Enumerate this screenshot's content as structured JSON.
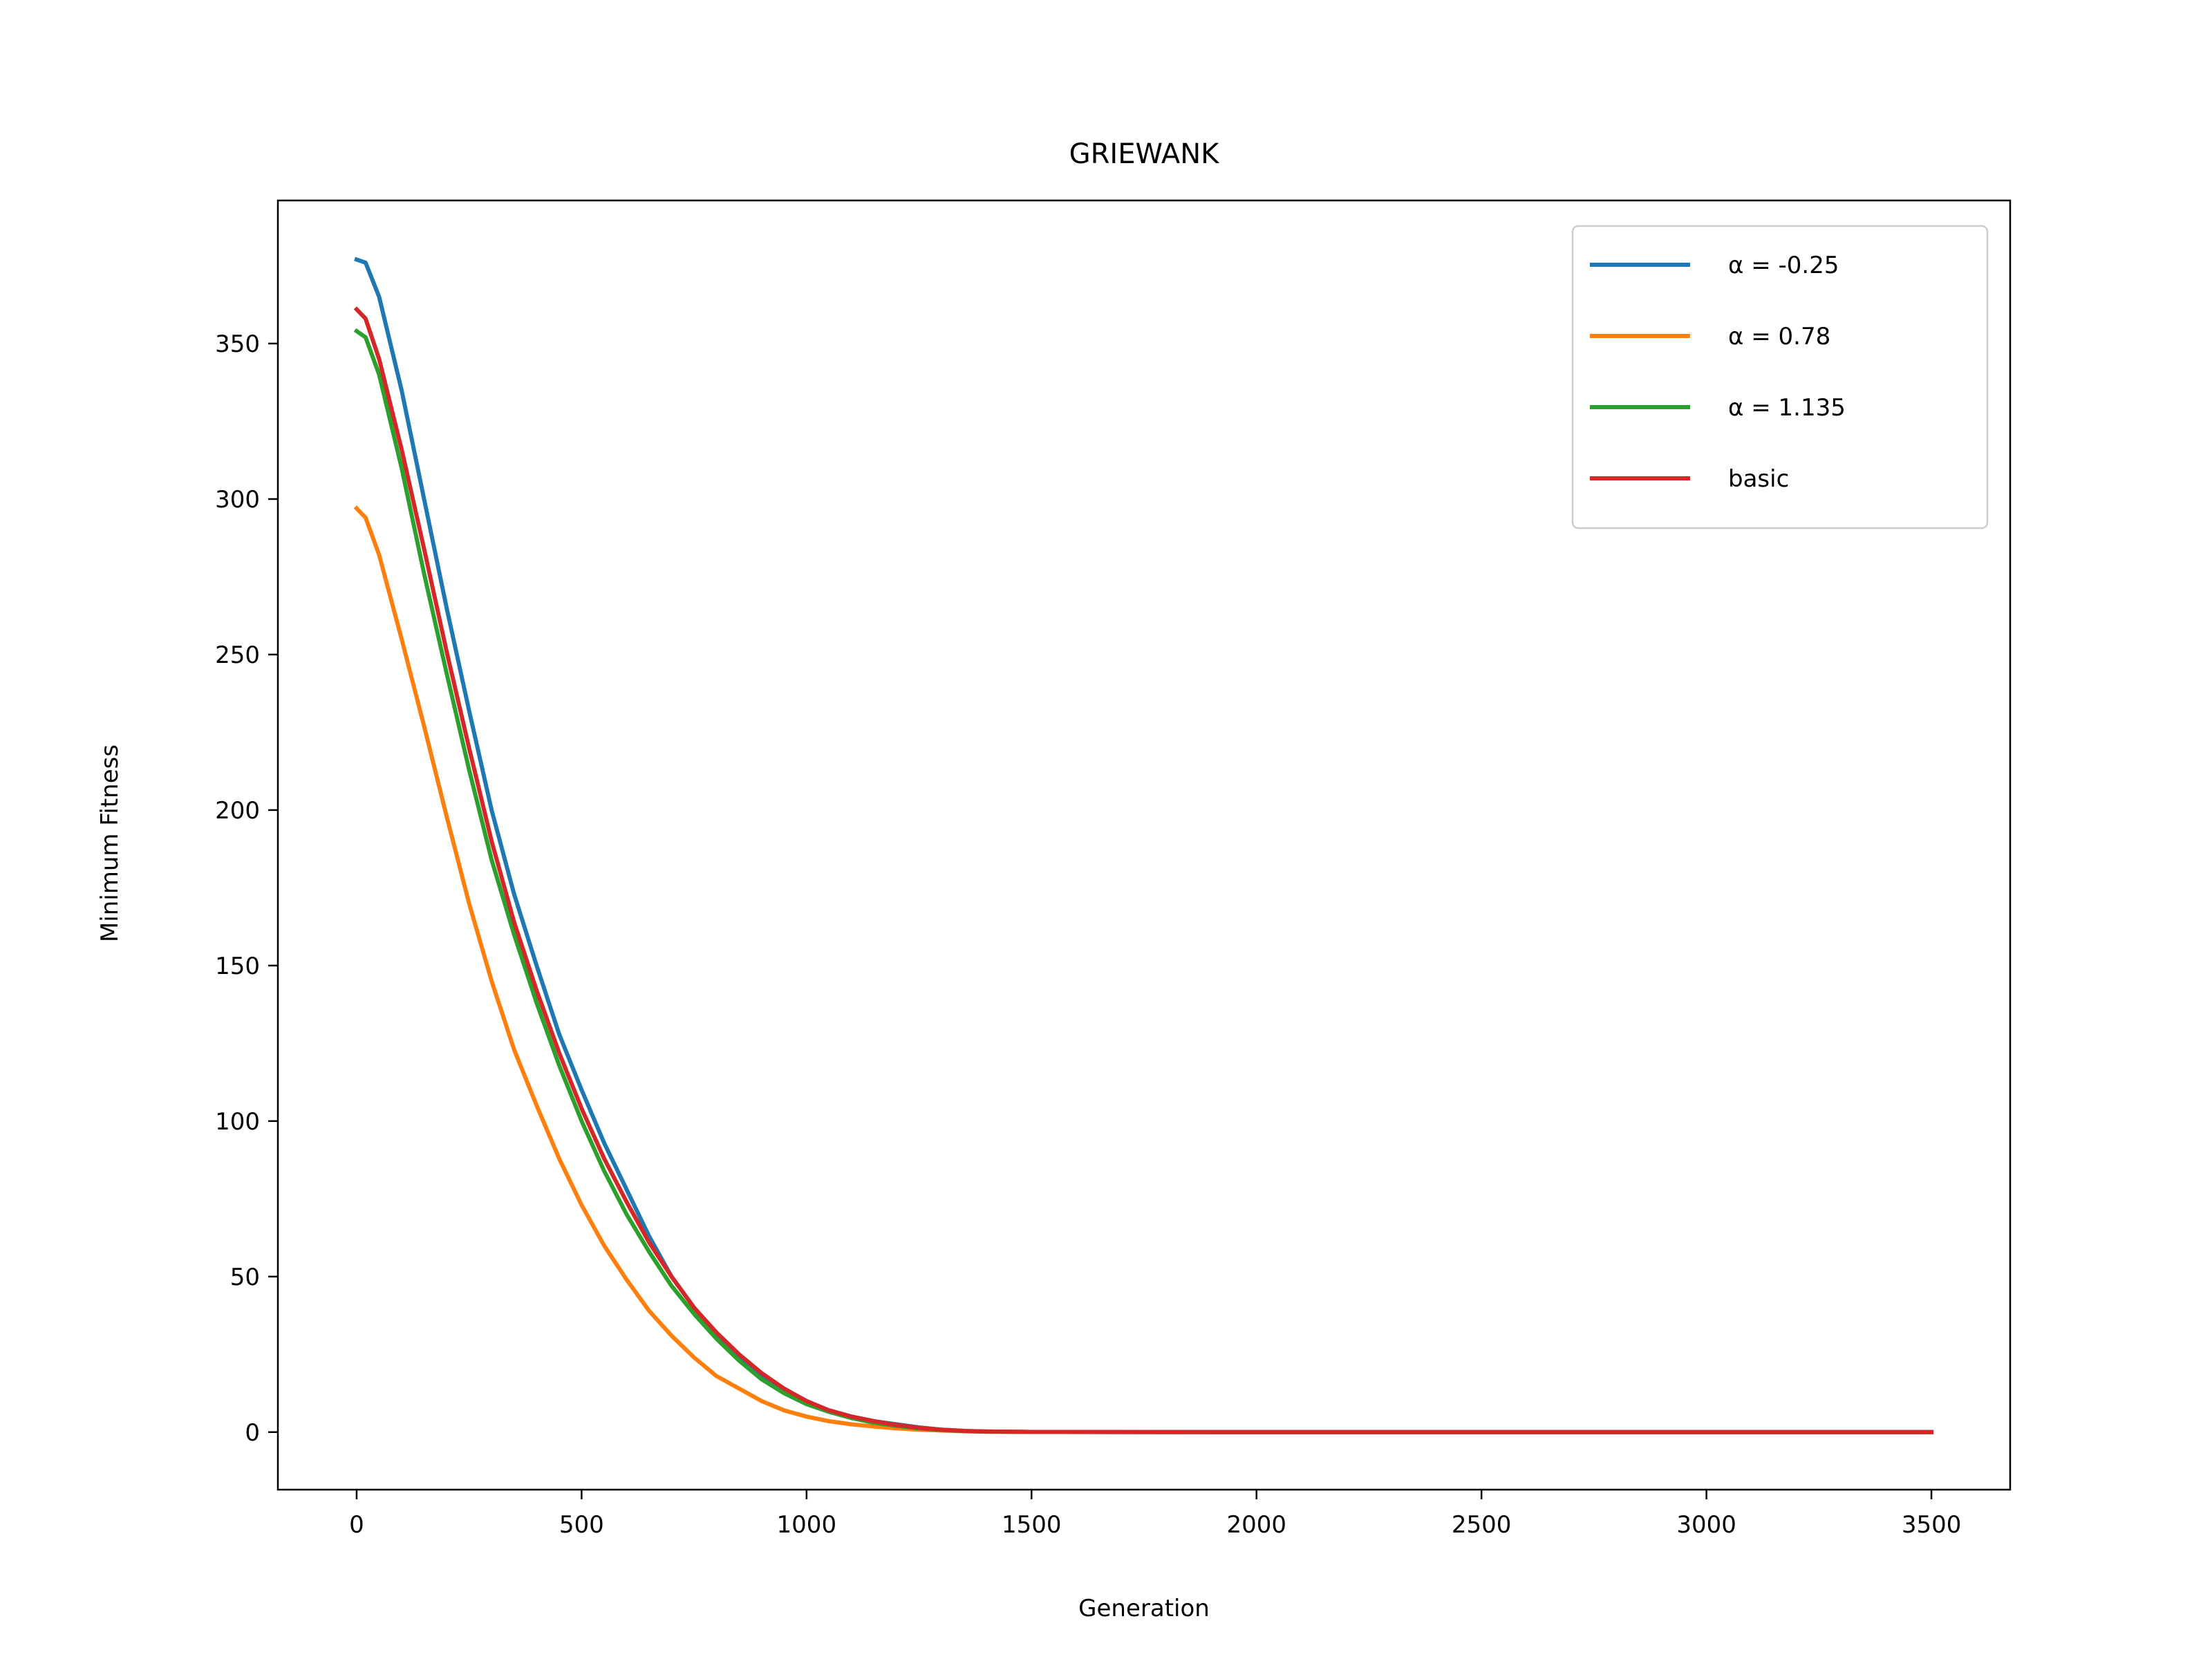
{
  "chart_data": {
    "type": "line",
    "title": "GRIEWANK",
    "xlabel": "Generation",
    "ylabel": "Minimum Fitness",
    "xlim": [
      -175,
      3675
    ],
    "ylim": [
      -18.5,
      396
    ],
    "xticks": [
      0,
      500,
      1000,
      1500,
      2000,
      2500,
      3000,
      3500
    ],
    "yticks": [
      0,
      50,
      100,
      150,
      200,
      250,
      300,
      350
    ],
    "grid": false,
    "legend_position": "top-right",
    "series": [
      {
        "name": "α = -0.25",
        "color": "#1f77b4",
        "x": [
          0,
          20,
          50,
          100,
          150,
          200,
          250,
          300,
          350,
          400,
          450,
          500,
          550,
          600,
          650,
          700,
          750,
          800,
          850,
          900,
          950,
          1000,
          1050,
          1100,
          1150,
          1200,
          1250,
          1300,
          1350,
          1400,
          1500,
          2000,
          2500,
          3000,
          3500
        ],
        "y": [
          377,
          376,
          365,
          335,
          300,
          265,
          232,
          200,
          173,
          150,
          128,
          110,
          93,
          78,
          63,
          50,
          40,
          31,
          24,
          18,
          13,
          9.5,
          7,
          5,
          3.5,
          2.5,
          1.5,
          0.8,
          0.4,
          0.2,
          0.05,
          0,
          0,
          0,
          0
        ]
      },
      {
        "name": "α = 0.78",
        "color": "#ff7f0e",
        "x": [
          0,
          20,
          50,
          100,
          150,
          200,
          250,
          300,
          350,
          400,
          450,
          500,
          550,
          600,
          650,
          700,
          750,
          800,
          850,
          900,
          950,
          1000,
          1050,
          1100,
          1150,
          1200,
          1250,
          1300,
          1350,
          1400,
          1500,
          2000,
          2500,
          3000,
          3500
        ],
        "y": [
          297,
          294,
          282,
          255,
          227,
          198,
          170,
          145,
          123,
          105,
          88,
          73,
          60,
          49,
          39,
          31,
          24,
          18,
          14,
          10,
          7,
          5,
          3.5,
          2.5,
          1.8,
          1.2,
          0.8,
          0.5,
          0.3,
          0.15,
          0.05,
          0,
          0,
          0,
          0
        ]
      },
      {
        "name": "α = 1.135",
        "color": "#2ca02c",
        "x": [
          0,
          20,
          50,
          100,
          150,
          200,
          250,
          300,
          350,
          400,
          450,
          500,
          550,
          600,
          650,
          700,
          750,
          800,
          850,
          900,
          950,
          1000,
          1050,
          1100,
          1150,
          1200,
          1250,
          1300,
          1350,
          1400,
          1500,
          2000,
          2500,
          3000,
          3500
        ],
        "y": [
          354,
          352,
          340,
          310,
          276,
          244,
          213,
          184,
          160,
          138,
          118,
          100,
          84,
          70,
          58,
          47,
          38,
          30,
          23,
          17,
          12.5,
          9,
          6.5,
          4.5,
          3,
          2,
          1.2,
          0.7,
          0.3,
          0.15,
          0.05,
          0,
          0,
          0,
          0
        ]
      },
      {
        "name": "basic",
        "color": "#d62728",
        "x": [
          0,
          20,
          50,
          100,
          150,
          200,
          250,
          300,
          350,
          400,
          450,
          500,
          550,
          600,
          650,
          700,
          750,
          800,
          850,
          900,
          950,
          1000,
          1050,
          1100,
          1150,
          1200,
          1250,
          1300,
          1350,
          1400,
          1500,
          2000,
          2500,
          3000,
          3500
        ],
        "y": [
          361,
          358,
          345,
          316,
          284,
          251,
          220,
          190,
          164,
          142,
          122,
          104,
          88,
          74,
          61,
          50,
          40,
          32,
          25,
          19,
          14,
          10,
          7,
          5,
          3.5,
          2.3,
          1.4,
          0.8,
          0.4,
          0.2,
          0.05,
          0,
          0,
          0,
          0
        ]
      }
    ]
  }
}
